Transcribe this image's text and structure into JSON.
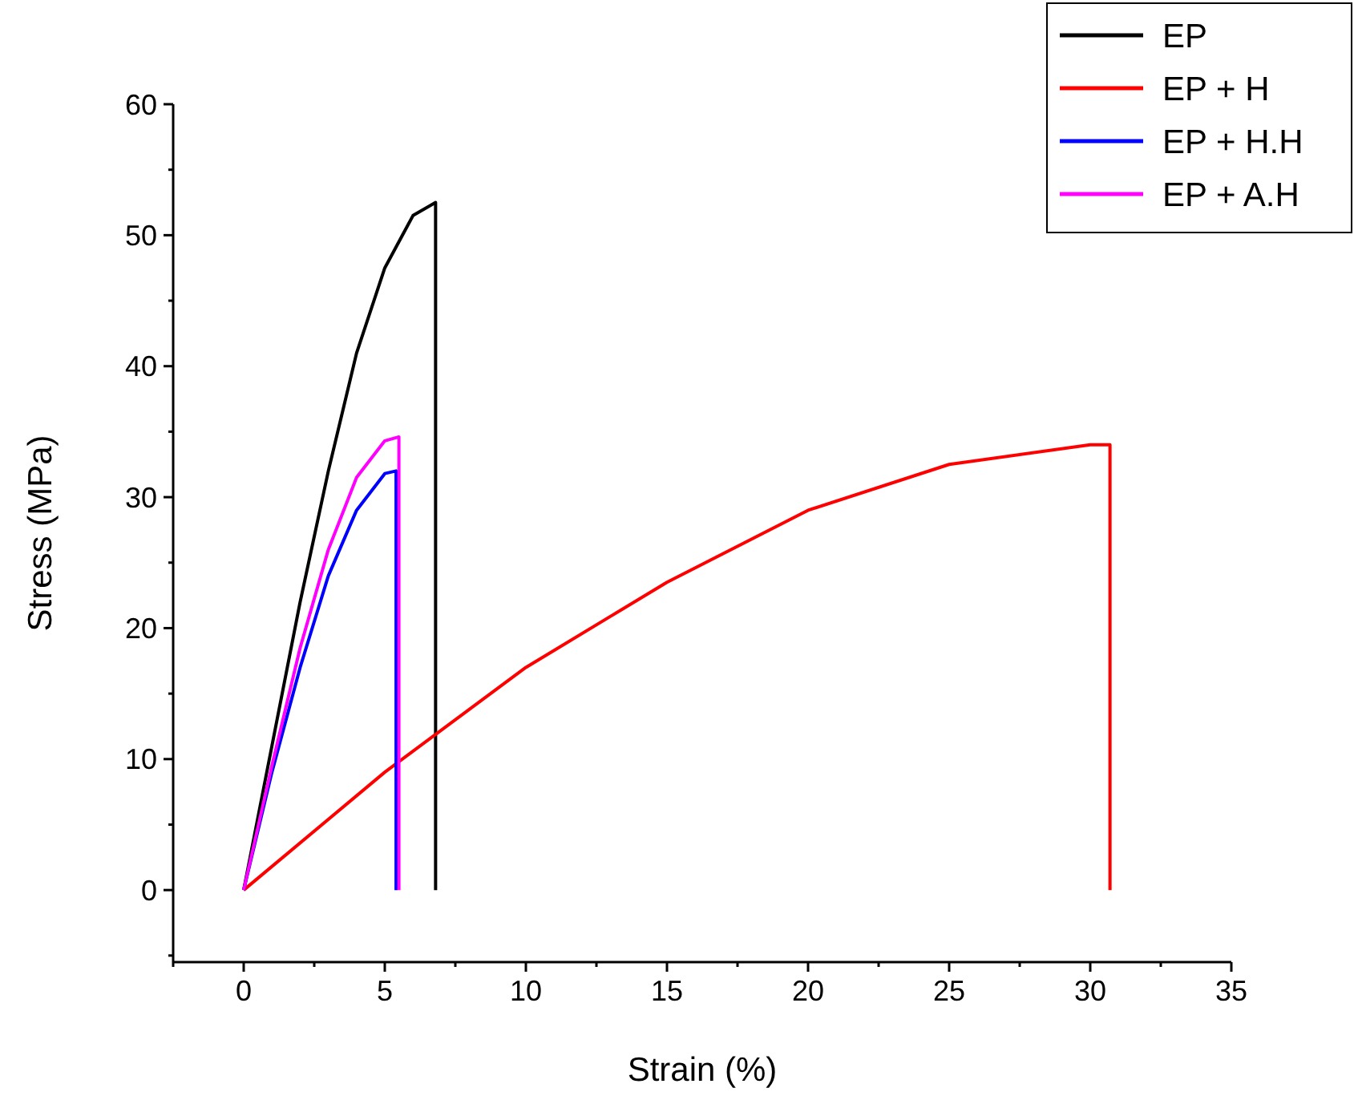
{
  "chart_data": {
    "type": "line",
    "xlabel": "Strain (%)",
    "ylabel": "Stress (MPa)",
    "xlim": [
      -2.5,
      35
    ],
    "ylim": [
      -5.5,
      60
    ],
    "xticks": [
      {
        "value": -2.5,
        "label": null
      },
      0,
      {
        "value": 2.5,
        "label": null
      },
      5,
      {
        "value": 7.5,
        "label": null
      },
      10,
      {
        "value": 12.5,
        "label": null
      },
      15,
      {
        "value": 17.5,
        "label": null
      },
      20,
      {
        "value": 22.5,
        "label": null
      },
      25,
      {
        "value": 27.5,
        "label": null
      },
      30,
      {
        "value": 32.5,
        "label": null
      },
      35
    ],
    "yticks": [
      {
        "value": -5,
        "label": null
      },
      0,
      {
        "value": 5,
        "label": null
      },
      10,
      {
        "value": 15,
        "label": null
      },
      20,
      {
        "value": 25,
        "label": null
      },
      30,
      {
        "value": 35,
        "label": null
      },
      40,
      {
        "value": 45,
        "label": null
      },
      50,
      {
        "value": 55,
        "label": null
      },
      60
    ],
    "grid": false,
    "legend": "top right",
    "marker": "none",
    "line_style": "solid",
    "series": [
      {
        "name": "EP",
        "color": "#000000",
        "x": [
          0,
          1,
          2,
          3,
          4,
          5,
          6,
          6.8,
          6.8
        ],
        "values": [
          0,
          11,
          22,
          32,
          41,
          47.5,
          51.5,
          52.5,
          0
        ]
      },
      {
        "name": "EP + H",
        "color": "#ff0000",
        "x": [
          0,
          5,
          10,
          15,
          20,
          25,
          30,
          30.7,
          30.7
        ],
        "values": [
          0,
          9,
          17,
          23.5,
          29,
          32.5,
          34,
          34,
          0
        ]
      },
      {
        "name": "EP + H.H",
        "color": "#0000ff",
        "x": [
          0,
          1,
          2,
          3,
          4,
          5,
          5.4,
          5.4
        ],
        "values": [
          0,
          9,
          17,
          24,
          29,
          31.8,
          32,
          0
        ]
      },
      {
        "name": "EP + A.H",
        "color": "#ff00ff",
        "x": [
          0,
          1,
          2,
          3,
          4,
          5,
          5.5,
          5.5
        ],
        "values": [
          0,
          9.5,
          18.5,
          26,
          31.5,
          34.3,
          34.6,
          0
        ]
      }
    ]
  }
}
